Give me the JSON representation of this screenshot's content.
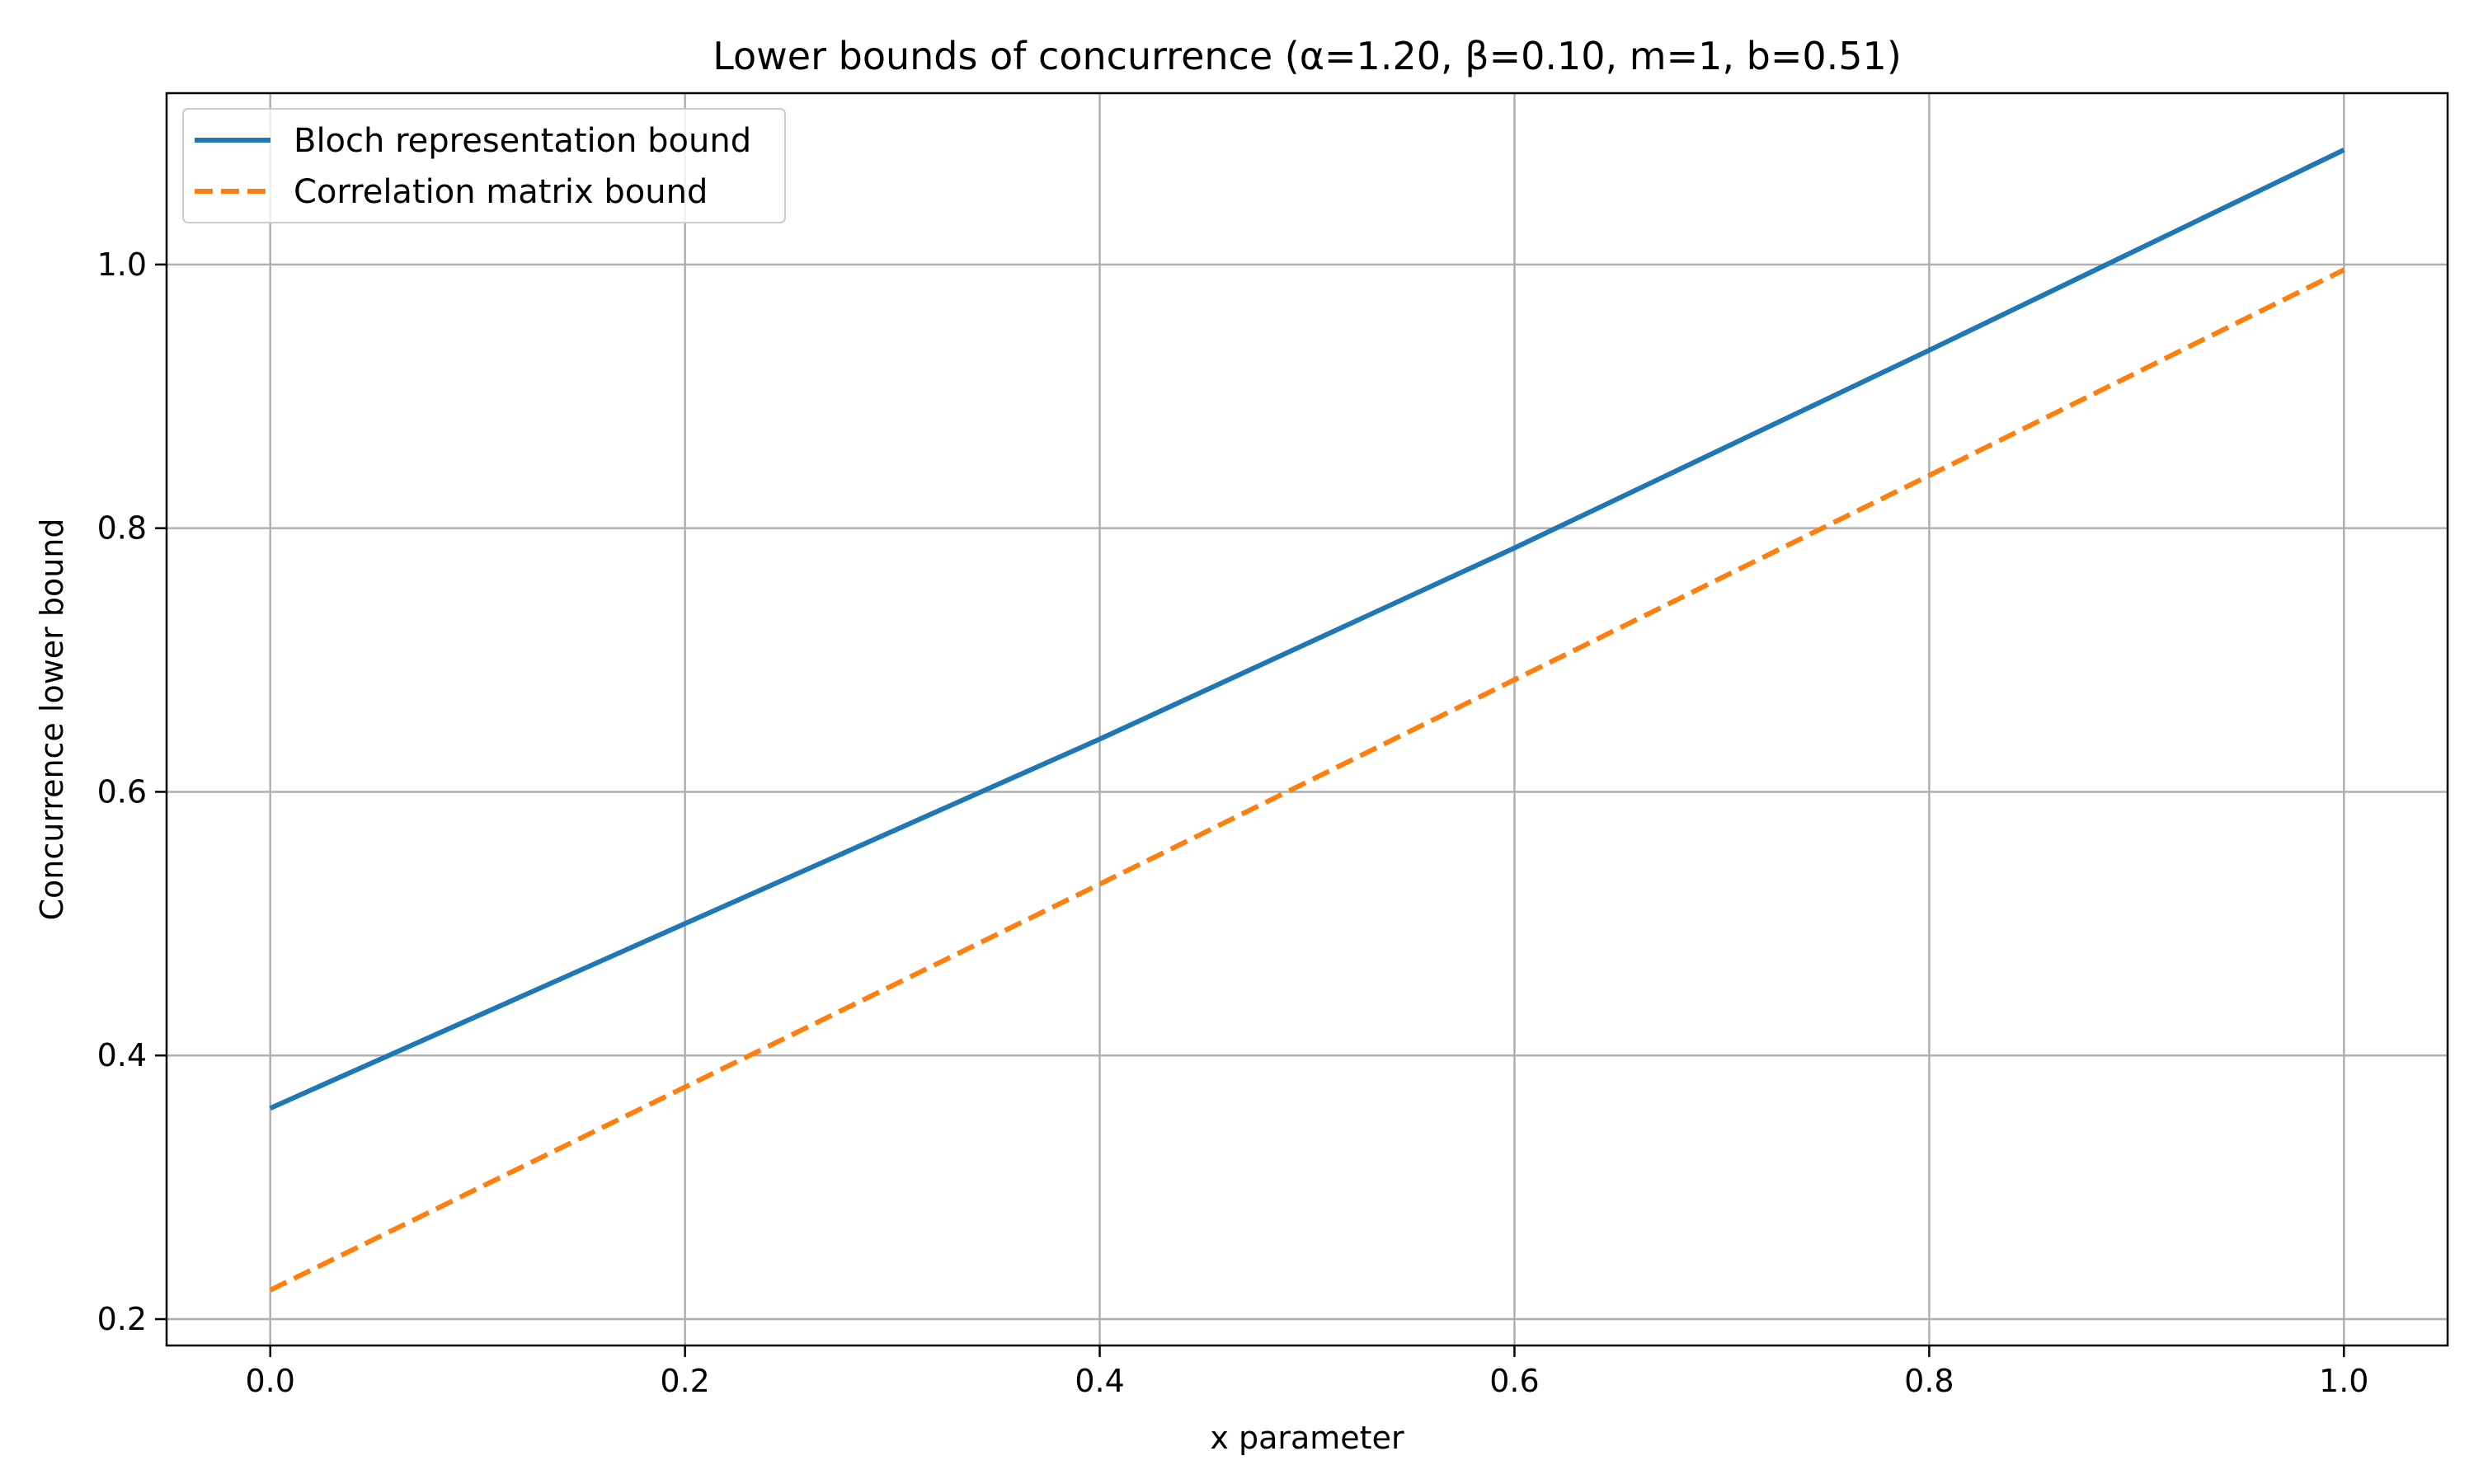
{
  "chart_data": {
    "type": "line",
    "title": "Lower bounds of concurrence (α=1.20, β=0.10, m=1, b=0.51)",
    "xlabel": "x parameter",
    "ylabel": "Concurrence lower bound",
    "xlim": [
      -0.05,
      1.05
    ],
    "ylim": [
      0.18,
      1.13
    ],
    "xticks": [
      0.0,
      0.2,
      0.4,
      0.6,
      0.8,
      1.0
    ],
    "xtick_labels": [
      "0.0",
      "0.2",
      "0.4",
      "0.6",
      "0.8",
      "1.0"
    ],
    "yticks": [
      0.2,
      0.4,
      0.6,
      0.8,
      1.0
    ],
    "ytick_labels": [
      "0.2",
      "0.4",
      "0.6",
      "0.8",
      "1.0"
    ],
    "grid": true,
    "legend_position": "top-left",
    "series": [
      {
        "name": "Bloch representation bound",
        "color": "#1f77b4",
        "style": "solid",
        "x": [
          0.0,
          0.2,
          0.4,
          0.6,
          0.8,
          1.0
        ],
        "y": [
          0.36,
          0.5,
          0.64,
          0.785,
          0.935,
          1.087
        ]
      },
      {
        "name": "Correlation matrix bound",
        "color": "#ff7f0e",
        "style": "dashed",
        "x": [
          0.0,
          0.2,
          0.4,
          0.6,
          0.8,
          1.0
        ],
        "y": [
          0.222,
          0.376,
          0.53,
          0.685,
          0.84,
          0.996
        ]
      }
    ]
  }
}
